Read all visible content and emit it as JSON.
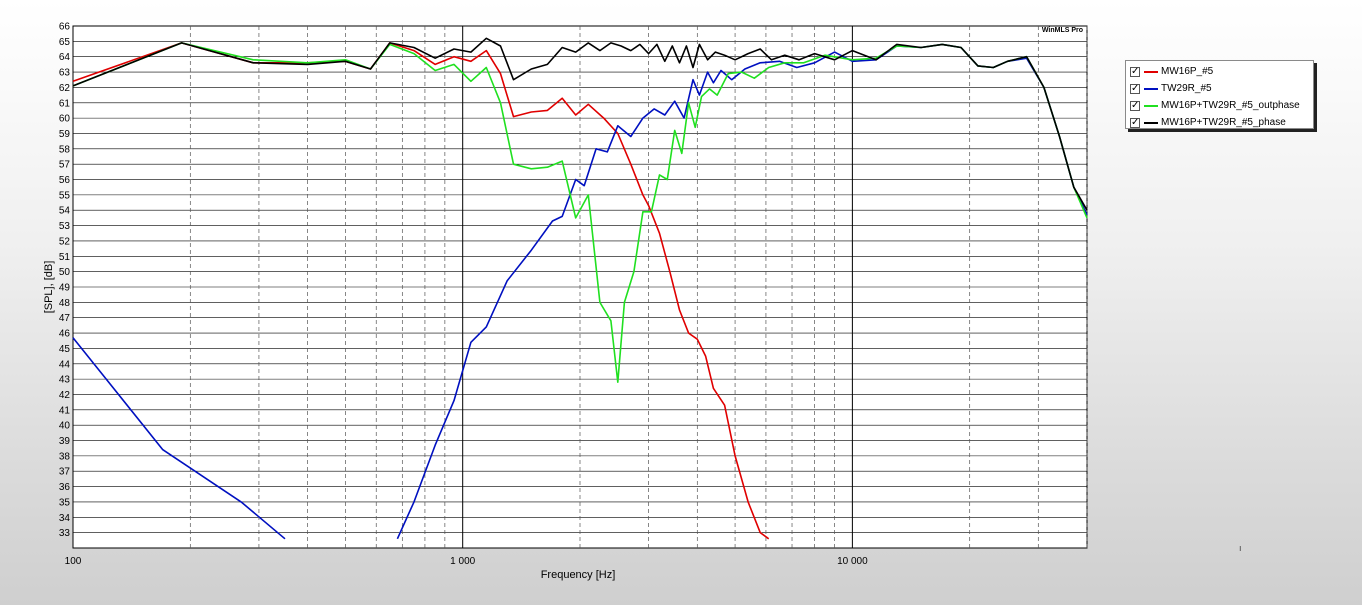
{
  "chart_data": {
    "type": "line",
    "title": "",
    "watermark": "WinMLS Pro",
    "xlabel": "Frequency [Hz]",
    "ylabel": "[SPL], [dB]",
    "xscale": "log",
    "xlim": [
      100,
      40000
    ],
    "ylim": [
      32,
      66
    ],
    "grid": true,
    "x_tick_labels": [
      {
        "value": 100,
        "label": "100"
      },
      {
        "value": 1000,
        "label": "1 000"
      },
      {
        "value": 10000,
        "label": "10 000"
      }
    ],
    "y_ticks": [
      33,
      34,
      35,
      36,
      37,
      38,
      39,
      40,
      41,
      42,
      43,
      44,
      45,
      46,
      47,
      48,
      49,
      50,
      51,
      52,
      53,
      54,
      55,
      56,
      57,
      58,
      59,
      60,
      61,
      62,
      63,
      64,
      65,
      66
    ],
    "legend_position": "right",
    "series": [
      {
        "name": "MW16P_#5",
        "color": "#e00000",
        "checked": true,
        "points": [
          [
            100,
            62.4
          ],
          [
            190,
            64.9
          ],
          [
            290,
            63.6
          ],
          [
            400,
            63.6
          ],
          [
            500,
            63.7
          ],
          [
            580,
            63.2
          ],
          [
            650,
            64.9
          ],
          [
            750,
            64.4
          ],
          [
            850,
            63.5
          ],
          [
            950,
            64.0
          ],
          [
            1050,
            63.7
          ],
          [
            1150,
            64.4
          ],
          [
            1250,
            62.9
          ],
          [
            1350,
            60.1
          ],
          [
            1500,
            60.4
          ],
          [
            1650,
            60.5
          ],
          [
            1800,
            61.3
          ],
          [
            1950,
            60.2
          ],
          [
            2100,
            60.9
          ],
          [
            2300,
            60.0
          ],
          [
            2500,
            59.0
          ],
          [
            2700,
            57.0
          ],
          [
            2900,
            55.0
          ],
          [
            3000,
            54.3
          ],
          [
            3200,
            52.5
          ],
          [
            3400,
            50.0
          ],
          [
            3600,
            47.5
          ],
          [
            3800,
            46.0
          ],
          [
            4000,
            45.6
          ],
          [
            4200,
            44.5
          ],
          [
            4400,
            42.4
          ],
          [
            4700,
            41.3
          ],
          [
            5000,
            38.0
          ],
          [
            5400,
            35.0
          ],
          [
            5800,
            33.0
          ],
          [
            6100,
            32.6
          ]
        ]
      },
      {
        "name": "TW29R_#5",
        "color": "#0010c0",
        "checked": true,
        "segments": [
          [
            [
              100,
              45.7
            ],
            [
              170,
              38.4
            ],
            [
              270,
              35.0
            ],
            [
              350,
              32.6
            ]
          ],
          [
            [
              680,
              32.6
            ],
            [
              750,
              35.0
            ],
            [
              850,
              38.7
            ],
            [
              950,
              41.6
            ],
            [
              1050,
              45.4
            ],
            [
              1150,
              46.4
            ],
            [
              1300,
              49.4
            ],
            [
              1500,
              51.4
            ],
            [
              1700,
              53.3
            ],
            [
              1800,
              53.6
            ],
            [
              1950,
              56.0
            ],
            [
              2050,
              55.6
            ],
            [
              2200,
              58.0
            ],
            [
              2350,
              57.8
            ],
            [
              2500,
              59.5
            ],
            [
              2700,
              58.8
            ],
            [
              2900,
              60.0
            ],
            [
              3100,
              60.6
            ],
            [
              3300,
              60.2
            ],
            [
              3500,
              61.1
            ],
            [
              3700,
              60.0
            ],
            [
              3900,
              62.5
            ],
            [
              4050,
              61.5
            ],
            [
              4250,
              63.0
            ],
            [
              4400,
              62.3
            ],
            [
              4600,
              63.1
            ],
            [
              4900,
              62.5
            ],
            [
              5300,
              63.2
            ],
            [
              5800,
              63.6
            ],
            [
              6500,
              63.7
            ],
            [
              7200,
              63.3
            ],
            [
              8000,
              63.6
            ],
            [
              9000,
              64.3
            ],
            [
              10000,
              63.7
            ],
            [
              11500,
              63.8
            ],
            [
              13000,
              64.7
            ],
            [
              15000,
              64.6
            ],
            [
              17000,
              64.8
            ],
            [
              19000,
              64.6
            ],
            [
              21000,
              63.4
            ],
            [
              23000,
              63.3
            ],
            [
              25000,
              63.7
            ],
            [
              28000,
              63.9
            ],
            [
              31000,
              62.0
            ],
            [
              34000,
              58.8
            ],
            [
              37000,
              55.5
            ],
            [
              40000,
              53.7
            ]
          ]
        ]
      },
      {
        "name": "MW16P+TW29R_#5_outphase",
        "color": "#20e020",
        "checked": true,
        "points": [
          [
            100,
            62.1
          ],
          [
            190,
            64.9
          ],
          [
            290,
            63.8
          ],
          [
            400,
            63.6
          ],
          [
            500,
            63.8
          ],
          [
            580,
            63.2
          ],
          [
            650,
            64.8
          ],
          [
            750,
            64.2
          ],
          [
            850,
            63.1
          ],
          [
            950,
            63.5
          ],
          [
            1050,
            62.4
          ],
          [
            1150,
            63.3
          ],
          [
            1250,
            61.0
          ],
          [
            1350,
            57.0
          ],
          [
            1500,
            56.7
          ],
          [
            1650,
            56.8
          ],
          [
            1800,
            57.2
          ],
          [
            1950,
            53.5
          ],
          [
            2100,
            55.0
          ],
          [
            2250,
            48.0
          ],
          [
            2400,
            46.8
          ],
          [
            2500,
            42.8
          ],
          [
            2600,
            48.0
          ],
          [
            2750,
            50.0
          ],
          [
            2900,
            53.9
          ],
          [
            3050,
            53.9
          ],
          [
            3200,
            56.3
          ],
          [
            3350,
            56.0
          ],
          [
            3500,
            59.2
          ],
          [
            3650,
            57.7
          ],
          [
            3800,
            61.0
          ],
          [
            3950,
            59.4
          ],
          [
            4100,
            61.4
          ],
          [
            4300,
            61.9
          ],
          [
            4500,
            61.5
          ],
          [
            4800,
            62.9
          ],
          [
            5200,
            63.0
          ],
          [
            5600,
            62.6
          ],
          [
            6100,
            63.3
          ],
          [
            6700,
            63.6
          ],
          [
            7500,
            63.6
          ],
          [
            8500,
            64.1
          ],
          [
            10000,
            63.8
          ],
          [
            11500,
            63.9
          ],
          [
            13000,
            64.7
          ],
          [
            15000,
            64.6
          ],
          [
            17000,
            64.8
          ],
          [
            19000,
            64.6
          ],
          [
            21000,
            63.4
          ],
          [
            23000,
            63.3
          ],
          [
            25000,
            63.7
          ],
          [
            28000,
            64.0
          ],
          [
            31000,
            62.0
          ],
          [
            34000,
            58.8
          ],
          [
            37000,
            55.5
          ],
          [
            40000,
            53.5
          ]
        ]
      },
      {
        "name": "MW16P+TW29R_#5_phase",
        "color": "#000000",
        "checked": true,
        "points": [
          [
            100,
            62.1
          ],
          [
            190,
            64.9
          ],
          [
            290,
            63.6
          ],
          [
            400,
            63.5
          ],
          [
            500,
            63.7
          ],
          [
            580,
            63.2
          ],
          [
            650,
            64.9
          ],
          [
            750,
            64.6
          ],
          [
            850,
            63.9
          ],
          [
            950,
            64.5
          ],
          [
            1050,
            64.3
          ],
          [
            1150,
            65.2
          ],
          [
            1250,
            64.7
          ],
          [
            1350,
            62.5
          ],
          [
            1500,
            63.2
          ],
          [
            1650,
            63.5
          ],
          [
            1800,
            64.6
          ],
          [
            1950,
            64.3
          ],
          [
            2100,
            64.9
          ],
          [
            2250,
            64.4
          ],
          [
            2400,
            64.9
          ],
          [
            2550,
            64.7
          ],
          [
            2700,
            64.4
          ],
          [
            2850,
            64.8
          ],
          [
            3000,
            64.2
          ],
          [
            3150,
            64.8
          ],
          [
            3300,
            63.7
          ],
          [
            3450,
            64.7
          ],
          [
            3600,
            63.6
          ],
          [
            3750,
            64.7
          ],
          [
            3900,
            63.3
          ],
          [
            4050,
            64.8
          ],
          [
            4250,
            63.8
          ],
          [
            4450,
            64.3
          ],
          [
            4700,
            64.1
          ],
          [
            5000,
            63.8
          ],
          [
            5400,
            64.2
          ],
          [
            5800,
            64.5
          ],
          [
            6200,
            63.8
          ],
          [
            6700,
            64.1
          ],
          [
            7300,
            63.8
          ],
          [
            8000,
            64.2
          ],
          [
            9000,
            63.8
          ],
          [
            10000,
            64.4
          ],
          [
            11500,
            63.8
          ],
          [
            13000,
            64.8
          ],
          [
            15000,
            64.6
          ],
          [
            17000,
            64.8
          ],
          [
            19000,
            64.6
          ],
          [
            21000,
            63.4
          ],
          [
            23000,
            63.3
          ],
          [
            25000,
            63.7
          ],
          [
            28000,
            64.0
          ],
          [
            31000,
            62.0
          ],
          [
            34000,
            58.8
          ],
          [
            37000,
            55.5
          ],
          [
            40000,
            54.0
          ]
        ]
      }
    ],
    "cursor_marker": "ı"
  }
}
